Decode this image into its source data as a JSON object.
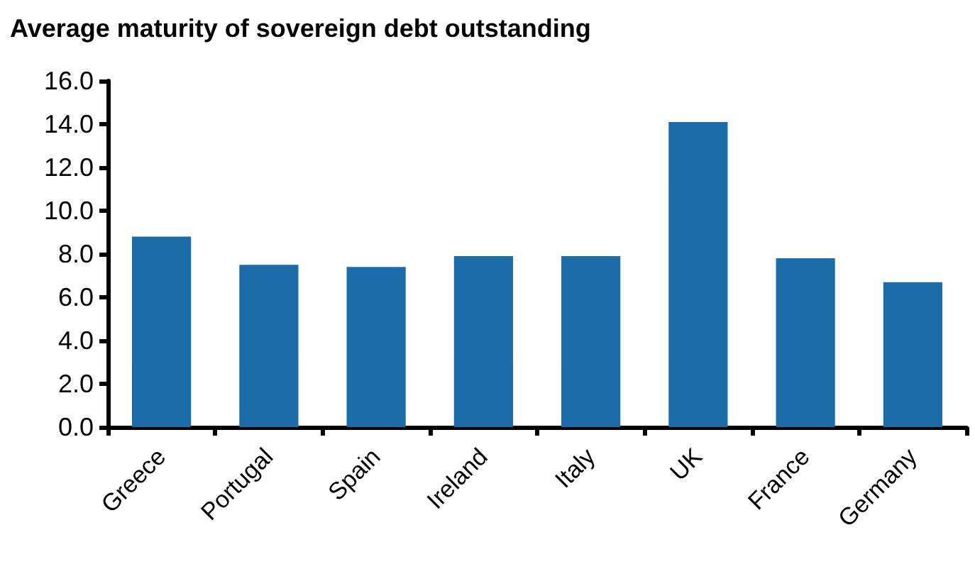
{
  "chart_data": {
    "type": "bar",
    "title": "Average maturity of sovereign debt outstanding",
    "categories": [
      "Greece",
      "Portugal",
      "Spain",
      "Ireland",
      "Italy",
      "UK",
      "France",
      "Germany"
    ],
    "values": [
      8.8,
      7.5,
      7.4,
      7.9,
      7.9,
      14.1,
      7.8,
      6.7
    ],
    "color": "#1b6ca8",
    "ylim": [
      0,
      16
    ],
    "yticks": [
      {
        "value": 0,
        "label": "0.0"
      },
      {
        "value": 2,
        "label": "2.0"
      },
      {
        "value": 4,
        "label": "4.0"
      },
      {
        "value": 6,
        "label": "6.0"
      },
      {
        "value": 8,
        "label": "8.0"
      },
      {
        "value": 10,
        "label": "10.0"
      },
      {
        "value": 12,
        "label": "12.0"
      },
      {
        "value": 14,
        "label": "14.0"
      },
      {
        "value": 16,
        "label": "16.0"
      }
    ],
    "grid": false
  }
}
